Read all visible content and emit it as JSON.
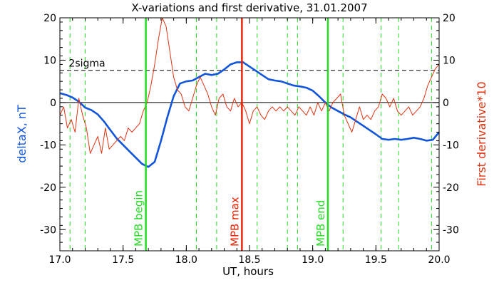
{
  "chart_data": {
    "type": "line",
    "title": "X-variations and first derivative, 31.01.2007",
    "xlabel": "UT, hours",
    "ylabel_left": "deltaX, nT",
    "ylabel_right": "First derivative*10",
    "xlim": [
      17.0,
      20.0
    ],
    "ylim": [
      -35,
      20
    ],
    "xticks": [
      17.0,
      17.5,
      18.0,
      18.5,
      19.0,
      19.5,
      20.0
    ],
    "xtick_labels": [
      "17.0",
      "17.5",
      "18.0",
      "18.5",
      "19.0",
      "19.5",
      "20.0"
    ],
    "yticks": [
      20,
      10,
      0,
      -10,
      -20,
      -30
    ],
    "ytick_labels": [
      "20",
      "10",
      "0",
      "-10",
      "-20",
      "-30"
    ],
    "zero_line": 0,
    "threshold": {
      "name": "2sigma",
      "value": 7.6,
      "label_x": 17.07
    },
    "dashed_green_lines": [
      17.08,
      17.2,
      18.08,
      18.24,
      18.56,
      18.8,
      18.88,
      19.24,
      19.54,
      19.68,
      19.94
    ],
    "markers": [
      {
        "label": "MPB begin",
        "x": 17.68,
        "color": "#22dd22"
      },
      {
        "label": "MPB max",
        "x": 18.44,
        "color": "#ee2200"
      },
      {
        "label": "MPB end",
        "x": 19.12,
        "color": "#22dd22"
      }
    ],
    "series": [
      {
        "name": "deltaX, nT",
        "axis": "left",
        "color": "#1155dd",
        "x": [
          17.0,
          17.05,
          17.1,
          17.15,
          17.2,
          17.25,
          17.3,
          17.35,
          17.4,
          17.45,
          17.5,
          17.55,
          17.6,
          17.65,
          17.7,
          17.75,
          17.8,
          17.85,
          17.9,
          17.95,
          18.0,
          18.05,
          18.1,
          18.15,
          18.2,
          18.25,
          18.3,
          18.35,
          18.4,
          18.45,
          18.5,
          18.55,
          18.6,
          18.65,
          18.7,
          18.75,
          18.8,
          18.85,
          18.9,
          18.95,
          19.0,
          19.05,
          19.1,
          19.15,
          19.2,
          19.25,
          19.3,
          19.35,
          19.4,
          19.45,
          19.5,
          19.55,
          19.6,
          19.65,
          19.7,
          19.75,
          19.8,
          19.85,
          19.9,
          19.95,
          20.0
        ],
        "values": [
          2.2,
          1.8,
          1.2,
          0.2,
          -1.2,
          -1.8,
          -2.8,
          -4.5,
          -6.5,
          -8.5,
          -10.0,
          -11.5,
          -13.0,
          -14.5,
          -15.2,
          -14.0,
          -9.0,
          -3.5,
          1.5,
          4.5,
          5.0,
          5.2,
          6.0,
          6.8,
          6.5,
          6.8,
          7.8,
          9.0,
          9.5,
          9.5,
          8.5,
          7.5,
          6.5,
          5.5,
          5.2,
          5.0,
          4.5,
          4.0,
          3.8,
          3.5,
          2.8,
          1.5,
          0.0,
          -1.2,
          -2.0,
          -2.8,
          -3.5,
          -4.5,
          -5.5,
          -6.5,
          -7.5,
          -8.6,
          -8.8,
          -8.6,
          -8.8,
          -8.6,
          -8.3,
          -8.6,
          -9.0,
          -8.8,
          -7.0
        ]
      },
      {
        "name": "First derivative*10",
        "axis": "right",
        "color": "#dd3311",
        "x": [
          17.0,
          17.03,
          17.06,
          17.09,
          17.12,
          17.15,
          17.18,
          17.21,
          17.24,
          17.27,
          17.3,
          17.33,
          17.36,
          17.39,
          17.42,
          17.45,
          17.48,
          17.51,
          17.54,
          17.57,
          17.6,
          17.63,
          17.66,
          17.69,
          17.72,
          17.75,
          17.78,
          17.81,
          17.84,
          17.87,
          17.9,
          17.93,
          17.96,
          17.99,
          18.02,
          18.05,
          18.08,
          18.11,
          18.14,
          18.17,
          18.2,
          18.23,
          18.26,
          18.29,
          18.32,
          18.35,
          18.38,
          18.41,
          18.44,
          18.47,
          18.5,
          18.53,
          18.56,
          18.59,
          18.62,
          18.65,
          18.68,
          18.71,
          18.74,
          18.77,
          18.8,
          18.83,
          18.86,
          18.89,
          18.92,
          18.95,
          18.98,
          19.01,
          19.04,
          19.07,
          19.1,
          19.13,
          19.16,
          19.19,
          19.22,
          19.25,
          19.28,
          19.31,
          19.34,
          19.37,
          19.4,
          19.43,
          19.46,
          19.49,
          19.52,
          19.55,
          19.58,
          19.61,
          19.64,
          19.67,
          19.7,
          19.73,
          19.76,
          19.79,
          19.82,
          19.85,
          19.88,
          19.91,
          19.94,
          19.97,
          20.0
        ],
        "values": [
          -3,
          -1,
          -6,
          -4,
          -7,
          1,
          -3,
          -6,
          -12,
          -10,
          -8,
          -12,
          -6,
          -11,
          -10,
          -9,
          -8,
          -9,
          -6,
          -7,
          -6,
          -5,
          -2,
          0,
          4,
          9,
          15,
          20,
          18,
          12,
          6,
          3,
          2,
          -1,
          -2,
          1,
          4,
          6,
          4,
          2,
          -1,
          -3,
          1,
          2,
          -1,
          -2,
          1,
          -1,
          0,
          -2,
          -5,
          -2,
          -1,
          -3,
          -4,
          -2,
          -1,
          -2,
          -1,
          -2,
          -1,
          -2,
          -3,
          -1,
          -2,
          -3,
          -1,
          -3,
          0,
          -2,
          0,
          -2,
          0,
          1,
          2,
          -3,
          -5,
          -7,
          -4,
          -1,
          -4,
          -3,
          -4,
          -2,
          -1,
          2,
          1,
          -1,
          1,
          -2,
          -3,
          -2,
          -1,
          -3,
          -2,
          -1,
          1,
          4,
          6,
          8,
          9
        ]
      }
    ]
  }
}
